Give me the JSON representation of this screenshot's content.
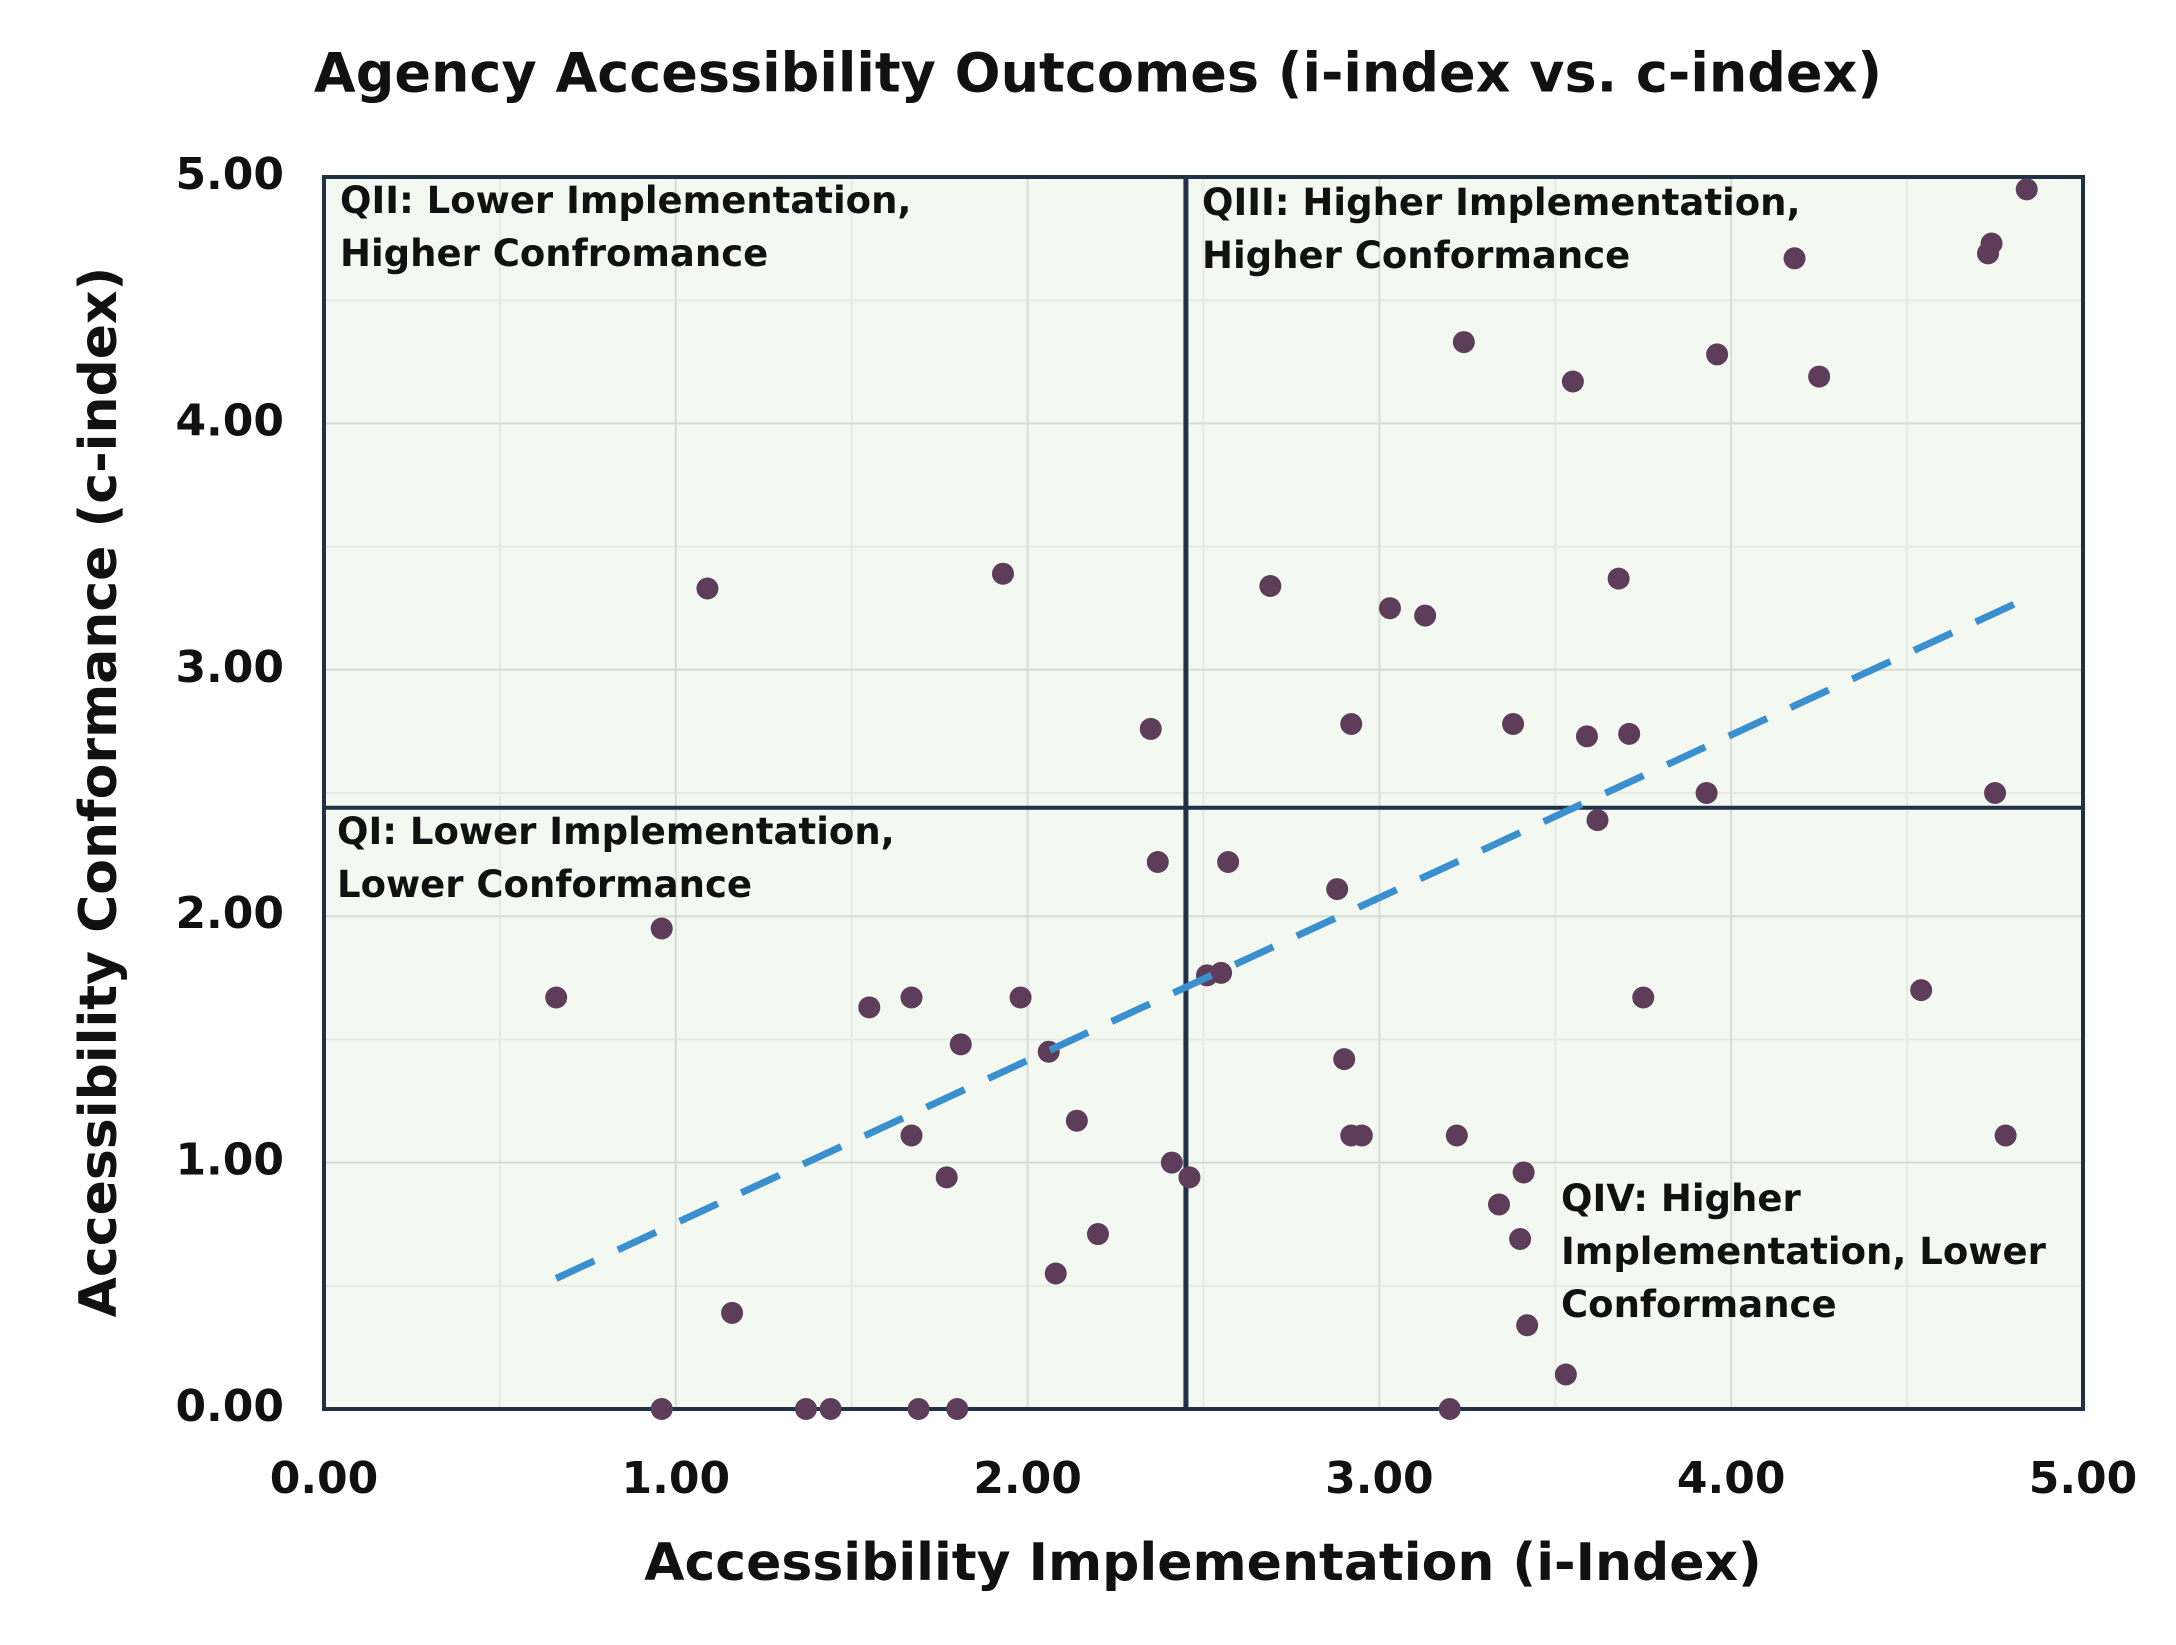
{
  "chart_data": {
    "type": "scatter",
    "title": "Agency Accessibility Outcomes (i-index vs. c-index)",
    "x_label": "Accessibility Implementation (i-Index)",
    "y_label": "Accessibility Conformance  (c-index)",
    "xlim": [
      0,
      5
    ],
    "ylim": [
      0,
      5
    ],
    "xticks": [
      {
        "value": 0,
        "label": "0.00"
      },
      {
        "value": 1,
        "label": "1.00"
      },
      {
        "value": 2,
        "label": "2.00"
      },
      {
        "value": 3,
        "label": "3.00"
      },
      {
        "value": 4,
        "label": "4.00"
      },
      {
        "value": 5,
        "label": "5.00"
      }
    ],
    "yticks": [
      {
        "value": 0,
        "label": "0.00"
      },
      {
        "value": 1,
        "label": "1.00"
      },
      {
        "value": 2,
        "label": "2.00"
      },
      {
        "value": 3,
        "label": "3.00"
      },
      {
        "value": 4,
        "label": "4.00"
      },
      {
        "value": 5,
        "label": "5.00"
      }
    ],
    "minor_xticks": [
      0.5,
      1.5,
      2.5,
      3.5,
      4.5
    ],
    "minor_yticks": [
      0.5,
      1.5,
      2.5,
      3.5,
      4.5
    ],
    "grid": true,
    "plot_background": "#f3f8f0",
    "series": [
      {
        "color": "#5e3d5a",
        "x": [
          4.84,
          4.74,
          4.73,
          4.18,
          3.24,
          3.96,
          4.25,
          3.55,
          1.09,
          1.93,
          2.69,
          3.03,
          3.13,
          3.68,
          2.35,
          2.92,
          3.38,
          3.59,
          3.71,
          3.93,
          4.75,
          3.62,
          2.37,
          2.57,
          2.88,
          0.96,
          0.66,
          1.55,
          1.67,
          1.98,
          2.51,
          2.55,
          3.75,
          4.54,
          1.81,
          2.06,
          2.9,
          2.14,
          1.67,
          2.92,
          2.95,
          3.22,
          4.78,
          2.41,
          3.41,
          2.46,
          1.77,
          3.34,
          2.2,
          3.4,
          2.08,
          1.16,
          3.42,
          3.53,
          0.96,
          1.37,
          1.44,
          1.69,
          1.8,
          3.2
        ],
        "values": [
          4.95,
          4.73,
          4.69,
          4.67,
          4.33,
          4.28,
          4.19,
          4.17,
          3.33,
          3.39,
          3.34,
          3.25,
          3.22,
          3.37,
          2.76,
          2.78,
          2.78,
          2.73,
          2.74,
          2.5,
          2.5,
          2.39,
          2.22,
          2.22,
          2.11,
          1.95,
          1.67,
          1.63,
          1.67,
          1.67,
          1.76,
          1.77,
          1.67,
          1.7,
          1.48,
          1.45,
          1.42,
          1.17,
          1.11,
          1.11,
          1.11,
          1.11,
          1.11,
          1.0,
          0.96,
          0.94,
          0.94,
          0.83,
          0.71,
          0.69,
          0.55,
          0.39,
          0.34,
          0.14,
          0,
          0,
          0,
          0,
          0,
          0
        ]
      }
    ],
    "trendline": {
      "x": [
        0.66,
        4.84
      ],
      "values": [
        0.53,
        3.29
      ],
      "color": "#3a8fcf",
      "dashed": true
    },
    "quadrant_divider": {
      "x": 2.45,
      "y": 2.44,
      "color": "#1f3047"
    },
    "annotations": [
      {
        "lines": [
          "QII: Lower Implementation,",
          "Higher Confromance"
        ]
      },
      {
        "lines": [
          "QIII: Higher Implementation,",
          "Higher Conformance"
        ]
      },
      {
        "lines": [
          "QI: Lower Implementation,",
          "Lower Conformance"
        ]
      },
      {
        "lines": [
          "QIV: Higher",
          "Implementation, Lower",
          "Conformance"
        ]
      }
    ]
  }
}
